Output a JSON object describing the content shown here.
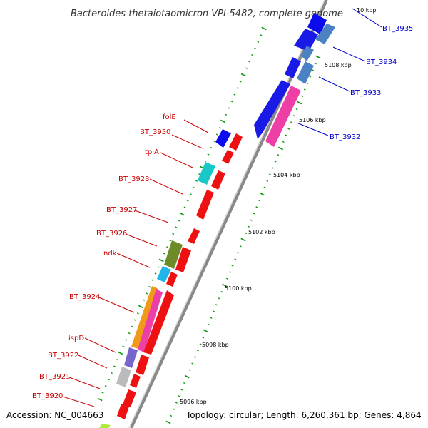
{
  "title": "Bacteroides thetaiotaomicron VPI-5482, complete genome",
  "footer": {
    "accession": "Accession: NC_004663",
    "topology": "Topology: circular; Length: 6,260,361 bp; Genes: 4,864"
  },
  "ruler": [
    "10 kbp",
    "5108 kbp",
    "5106 kbp",
    "5104 kbp",
    "5102 kbp",
    "5100 kbp",
    "5098 kbp",
    "5096 kbp"
  ],
  "colors": {
    "label_left": "#cc0000",
    "label_right": "#0000cc",
    "backbone": "#888888",
    "tick": "#119911"
  },
  "genes_right": [
    {
      "name": "BT_3935",
      "color": "#3d62c9"
    },
    {
      "name": "BT_3934",
      "color": "#4a82c4"
    },
    {
      "name": "BT_3933",
      "color": "#1a1ae6"
    },
    {
      "name": "BT_3932",
      "color": "#ee3fa6"
    }
  ],
  "genes_left": [
    {
      "name": "folE",
      "color": "#0b0bee"
    },
    {
      "name": "BT_3930",
      "color": "#ee1111"
    },
    {
      "name": "tpiA",
      "color": "#18c8c8"
    },
    {
      "name": "BT_3928",
      "color": "#ee1111"
    },
    {
      "name": "BT_3927",
      "color": "#ee1111"
    },
    {
      "name": "BT_3926",
      "color": "#6e8b2a"
    },
    {
      "name": "ndk",
      "color": "#22b5e8"
    },
    {
      "name": "BT_3924",
      "color": "#f09a1a"
    },
    {
      "name": "ispD",
      "color": "#7766cc"
    },
    {
      "name": "BT_3922",
      "color": "#bbbbbb"
    },
    {
      "name": "BT_3921",
      "color": "#ee1111"
    },
    {
      "name": "BT_3920",
      "color": "#ee1111"
    }
  ]
}
